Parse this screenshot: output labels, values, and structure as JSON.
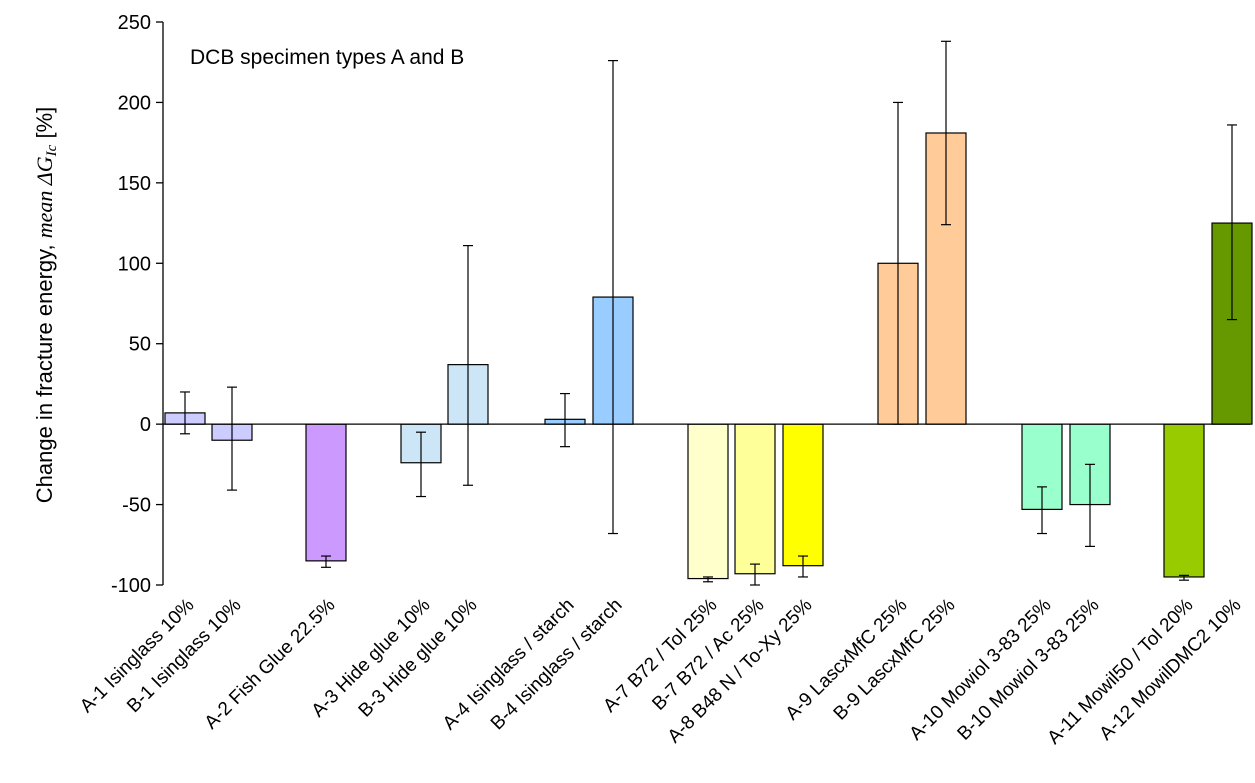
{
  "chart_data": {
    "type": "bar",
    "annotation": "DCB specimen types A and B",
    "ylabel_parts": {
      "prefix": "Change in fracture energy, ",
      "mean_word": "mean ",
      "symbol": "ΔG",
      "subscript": "Ic",
      "suffix": " [%]"
    },
    "ylim": [
      -100,
      250
    ],
    "yticks": [
      -100,
      -50,
      0,
      50,
      100,
      150,
      200,
      250
    ],
    "ytick_labels": [
      "-100",
      "-50",
      "0",
      "50",
      "100",
      "150",
      "200",
      "250"
    ],
    "grid": false,
    "bars": [
      {
        "category": "A-1 Isinglass 10%",
        "value": 7,
        "err_low": -6,
        "err_high": 20,
        "color": "#ccccff"
      },
      {
        "category": "B-1 Isinglass 10%",
        "value": -10,
        "err_low": -41,
        "err_high": 23,
        "color": "#ccccff"
      },
      {
        "category": "A-2 Fish Glue 22.5%",
        "value": -85,
        "err_low": -89,
        "err_high": -82,
        "color": "#cc99ff"
      },
      {
        "category": "A-3 Hide glue 10%",
        "value": -24,
        "err_low": -45,
        "err_high": -5,
        "color": "#cce6f8"
      },
      {
        "category": "B-3 Hide glue 10%",
        "value": 37,
        "err_low": -38,
        "err_high": 111,
        "color": "#cce6f8"
      },
      {
        "category": "A-4 Isinglass / starch",
        "value": 3,
        "err_low": -14,
        "err_high": 19,
        "color": "#99ccff"
      },
      {
        "category": "B-4 Isinglass / starch",
        "value": 79,
        "err_low": -68,
        "err_high": 226,
        "color": "#99ccff"
      },
      {
        "category": "A-7 B72 / Tol 25%",
        "value": -96,
        "err_low": -98,
        "err_high": -95,
        "color": "#ffffcc"
      },
      {
        "category": "B-7 B72 / Ac 25%",
        "value": -93,
        "err_low": -100,
        "err_high": -87,
        "color": "#ffff99"
      },
      {
        "category": "A-8 B48 N / To-Xy 25%",
        "value": -88,
        "err_low": -95,
        "err_high": -82,
        "color": "#ffff00"
      },
      {
        "category": "A-9 LascxMfC 25%",
        "value": 100,
        "err_low": 0,
        "err_high": 200,
        "color": "#ffcc99"
      },
      {
        "category": "B-9 LascxMfC 25%",
        "value": 181,
        "err_low": 124,
        "err_high": 238,
        "color": "#ffcc99"
      },
      {
        "category": "A-10 Mowiol 3-83 25%",
        "value": -53,
        "err_low": -68,
        "err_high": -39,
        "color": "#99ffcc"
      },
      {
        "category": "B-10 Mowiol 3-83 25%",
        "value": -50,
        "err_low": -76,
        "err_high": -25,
        "color": "#99ffcc"
      },
      {
        "category": "A-11 Mowil50 / Tol 20%",
        "value": -95,
        "err_low": -97,
        "err_high": -94,
        "color": "#99cc00"
      },
      {
        "category": "A-12 MowilDMC2 10%",
        "value": 125,
        "err_low": 65,
        "err_high": 186,
        "color": "#669900"
      }
    ]
  }
}
